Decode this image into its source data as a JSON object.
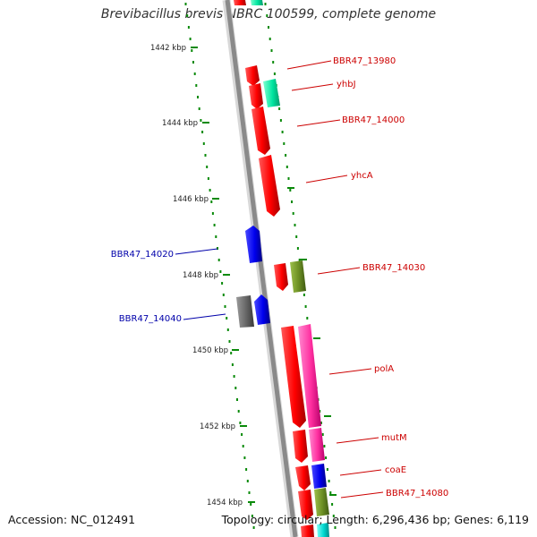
{
  "title": "Brevibacillus brevis NBRC 100599, complete genome",
  "footer": {
    "accession_label": "Accession:",
    "accession": "NC_012491",
    "topology_label": "Topology:",
    "topology": "circular;",
    "length_label": "Length:",
    "length": "6,296,436 bp;",
    "genes_label": "Genes:",
    "genes": "6,119"
  },
  "colors": {
    "backbone": "#8a8a8a",
    "forward_gene": "#ff0000",
    "reverse_gene": "#0000ee",
    "aqua_gene": "#00e5a0",
    "olive_gene": "#6b8e23",
    "pink_gene": "#ff2fa0",
    "grey_gene": "#666666",
    "label_forward": "#cc0000",
    "label_reverse": "#0000aa",
    "tick_dot": "#0a8a0a"
  },
  "ticks": [
    "1442 kbp",
    "1444 kbp",
    "1446 kbp",
    "1448 kbp",
    "1450 kbp",
    "1452 kbp",
    "1454 kbp"
  ],
  "genes_right": [
    "BBR47_13980",
    "yhbJ",
    "BBR47_14000",
    "yhcA",
    "BBR47_14030",
    "polA",
    "mutM",
    "coaE",
    "BBR47_14080"
  ],
  "genes_left": [
    "BBR47_14020",
    "BBR47_14040"
  ]
}
